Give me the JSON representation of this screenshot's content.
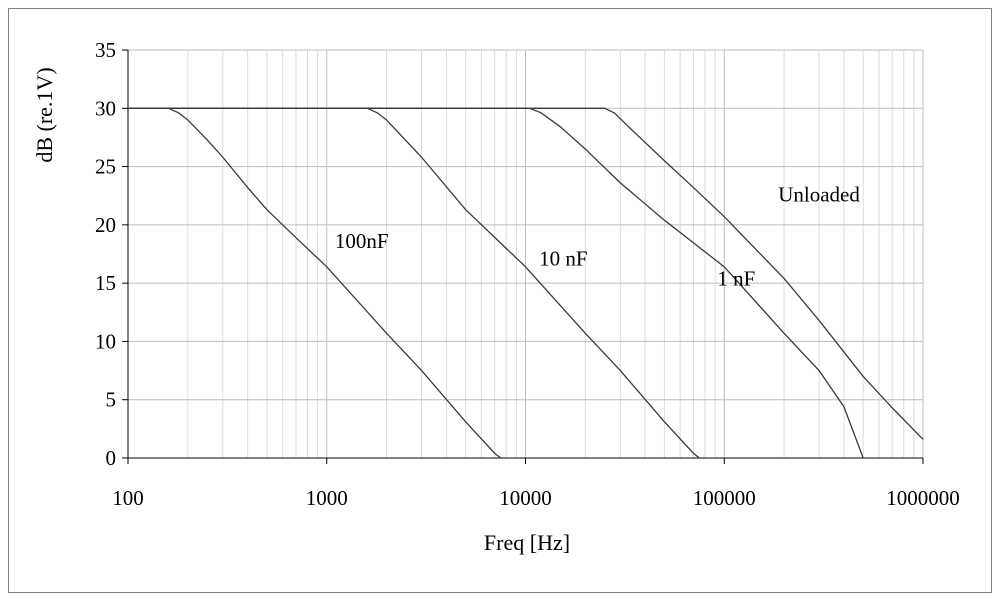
{
  "chart_data": {
    "type": "line",
    "title": "",
    "xlabel": "Freq [Hz]",
    "ylabel": "dB (re.1V)",
    "x_scale": "log",
    "xlim": [
      100,
      1000000
    ],
    "ylim": [
      0,
      35
    ],
    "x_ticks": [
      "100",
      "1000",
      "10000",
      "100000",
      "1000000"
    ],
    "y_ticks": [
      "0",
      "5",
      "10",
      "15",
      "20",
      "25",
      "30",
      "35"
    ],
    "grid": {
      "x_major": true,
      "x_minor": true,
      "y_major": true
    },
    "legend": "inline labels",
    "series": [
      {
        "name": "100nF",
        "label_at": {
          "x": 1500,
          "y": 18
        },
        "points": [
          [
            100,
            30
          ],
          [
            160,
            30
          ],
          [
            180,
            29.6
          ],
          [
            200,
            29
          ],
          [
            250,
            27.3
          ],
          [
            300,
            25.8
          ],
          [
            400,
            23.2
          ],
          [
            500,
            21.3
          ],
          [
            700,
            18.9
          ],
          [
            1000,
            16.4
          ],
          [
            2000,
            10.7
          ],
          [
            3000,
            7.5
          ],
          [
            5000,
            3.1
          ],
          [
            7000,
            0.4
          ],
          [
            7500,
            0
          ]
        ]
      },
      {
        "name": "10 nF",
        "label_at": {
          "x": 15500,
          "y": 16.5
        },
        "points": [
          [
            100,
            30
          ],
          [
            1600,
            30
          ],
          [
            1800,
            29.6
          ],
          [
            2000,
            29
          ],
          [
            3000,
            25.8
          ],
          [
            5000,
            21.3
          ],
          [
            10000,
            16.4
          ],
          [
            20000,
            10.7
          ],
          [
            30000,
            7.5
          ],
          [
            50000,
            3.1
          ],
          [
            70000,
            0.4
          ],
          [
            75000,
            0
          ]
        ]
      },
      {
        "name": "1 nF",
        "label_at": {
          "x": 115000,
          "y": 14.8
        },
        "points": [
          [
            100,
            30
          ],
          [
            10500,
            30
          ],
          [
            12000,
            29.6
          ],
          [
            15000,
            28.4
          ],
          [
            20000,
            26.5
          ],
          [
            30000,
            23.6
          ],
          [
            50000,
            20.4
          ],
          [
            100000,
            16.4
          ],
          [
            200000,
            10.7
          ],
          [
            300000,
            7.5
          ],
          [
            400000,
            4.4
          ],
          [
            500000,
            0
          ]
        ]
      },
      {
        "name": "Unloaded",
        "label_at": {
          "x": 300000,
          "y": 22
        },
        "points": [
          [
            100,
            30
          ],
          [
            25000,
            30
          ],
          [
            28000,
            29.6
          ],
          [
            35000,
            28
          ],
          [
            50000,
            25.5
          ],
          [
            70000,
            23.2
          ],
          [
            100000,
            20.7
          ],
          [
            200000,
            15.4
          ],
          [
            300000,
            11.8
          ],
          [
            500000,
            7
          ],
          [
            700000,
            4.3
          ],
          [
            1000000,
            1.6
          ]
        ]
      }
    ]
  }
}
